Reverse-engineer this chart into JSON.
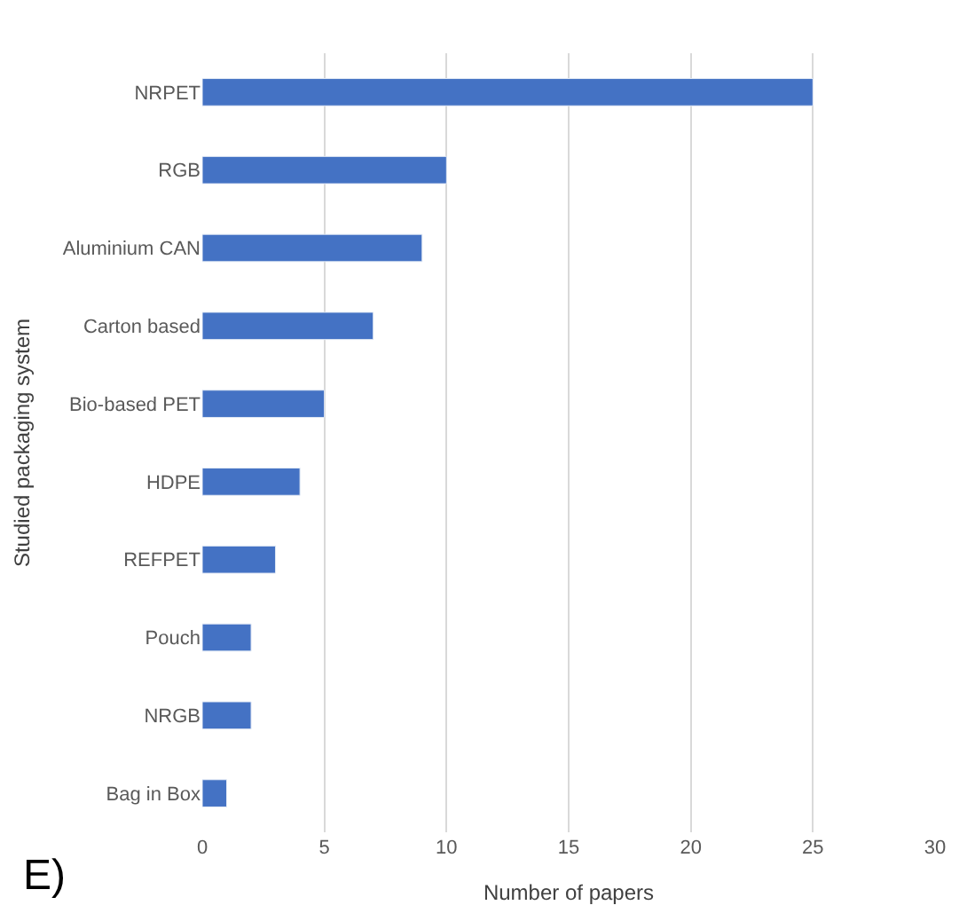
{
  "chart_data": {
    "type": "bar",
    "orientation": "horizontal",
    "categories": [
      "NRPET",
      "RGB",
      "Aluminium CAN",
      "Carton based",
      "Bio-based PET",
      "HDPE",
      "REFPET",
      "Pouch",
      "NRGB",
      "Bag in Box"
    ],
    "values": [
      25,
      10,
      9,
      7,
      5,
      4,
      3,
      2,
      2,
      1
    ],
    "color": "#4472c4",
    "xlabel": "Number of papers",
    "ylabel": "Studied packaging system",
    "xlim": [
      0,
      30
    ],
    "xticks": [
      0,
      5,
      10,
      15,
      20,
      25,
      30
    ],
    "grid": "x",
    "annotations": [
      "E)"
    ]
  }
}
